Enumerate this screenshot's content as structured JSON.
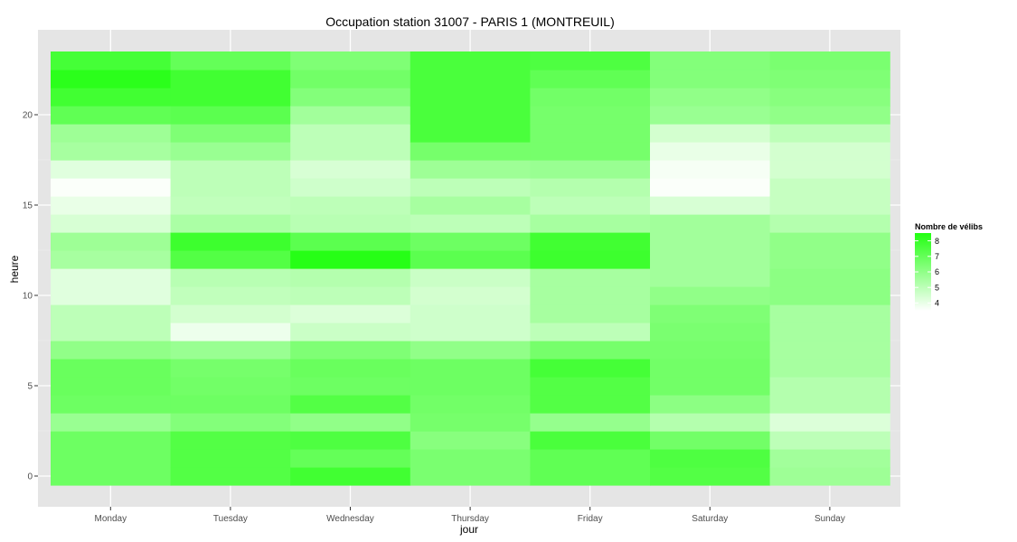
{
  "chart_data": {
    "type": "heatmap",
    "title": "Occupation station 31007 - PARIS 1 (MONTREUIL)",
    "xlabel": "jour",
    "ylabel": "heure",
    "categories": [
      "Monday",
      "Tuesday",
      "Wednesday",
      "Thursday",
      "Friday",
      "Saturday",
      "Sunday"
    ],
    "hours": [
      0,
      1,
      2,
      3,
      4,
      5,
      6,
      7,
      8,
      9,
      10,
      11,
      12,
      13,
      14,
      15,
      16,
      17,
      18,
      19,
      20,
      21,
      22,
      23
    ],
    "ylim": [
      -0.5,
      23.5
    ],
    "yticks": [
      0,
      5,
      10,
      15,
      20
    ],
    "values": [
      [
        6.8,
        6.8,
        6.8,
        5.8,
        6.8,
        6.9,
        6.9,
        6.0,
        5.0,
        5.0,
        4.2,
        4.2,
        5.5,
        5.7,
        4.4,
        4.0,
        3.6,
        4.2,
        5.5,
        5.7,
        7.1,
        7.8,
        8.3,
        7.7
      ],
      [
        7.4,
        7.4,
        7.4,
        6.3,
        6.8,
        6.7,
        6.6,
        5.8,
        3.9,
        4.5,
        4.9,
        5.1,
        7.4,
        7.9,
        5.4,
        4.9,
        5.0,
        5.0,
        5.8,
        6.4,
        7.2,
        7.8,
        7.8,
        7.0
      ],
      [
        7.8,
        7.0,
        7.5,
        6.0,
        7.4,
        6.8,
        6.9,
        6.4,
        4.7,
        4.3,
        5.0,
        5.2,
        8.4,
        7.2,
        5.1,
        5.0,
        4.6,
        4.4,
        5.0,
        5.0,
        5.6,
        6.3,
        6.7,
        6.4
      ],
      [
        6.5,
        6.5,
        6.2,
        6.6,
        6.7,
        6.8,
        6.8,
        6.0,
        4.6,
        4.6,
        4.5,
        4.7,
        7.2,
        6.8,
        5.0,
        5.5,
        5.0,
        5.7,
        6.6,
        7.6,
        7.6,
        7.6,
        7.6,
        7.6
      ],
      [
        7.1,
        7.1,
        7.6,
        5.9,
        7.4,
        7.4,
        7.7,
        6.6,
        5.0,
        5.5,
        5.5,
        5.5,
        7.9,
        7.8,
        5.5,
        5.0,
        5.2,
        5.8,
        6.6,
        6.6,
        6.6,
        6.7,
        7.1,
        7.5
      ],
      [
        7.4,
        7.5,
        6.7,
        5.2,
        6.1,
        6.7,
        6.7,
        6.6,
        6.5,
        6.4,
        6.0,
        5.6,
        5.6,
        5.6,
        5.6,
        4.4,
        3.6,
        3.7,
        4.0,
        4.5,
        5.8,
        6.0,
        6.3,
        6.3
      ],
      [
        5.7,
        5.6,
        5.0,
        4.3,
        5.2,
        5.2,
        5.5,
        5.5,
        5.5,
        5.5,
        6.1,
        6.1,
        6.0,
        6.0,
        5.2,
        4.8,
        4.8,
        4.5,
        4.5,
        5.0,
        6.0,
        6.2,
        6.4,
        6.5
      ]
    ],
    "value_range": [
      3.5,
      8.5
    ],
    "color_low": "#ffffff",
    "color_high": "#22ff11",
    "panel_color": "#e5e5e5",
    "grid": true,
    "legend": {
      "title": "Nombre de vélibs",
      "labels": [
        "8",
        "7",
        "6",
        "5",
        "4"
      ],
      "label_values": [
        8,
        7,
        6,
        5,
        4
      ],
      "placement": "right"
    }
  }
}
